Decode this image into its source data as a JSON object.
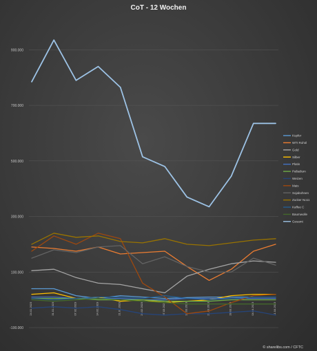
{
  "chart_data": {
    "type": "line",
    "title": "CoT - 12 Wochen",
    "credit": "© sharelibs.com / CFTC",
    "x": [
      "24.01.2023",
      "31.01.2023",
      "07.02.2023",
      "14.02.2023",
      "21.02.2023",
      "28.02.2023",
      "07.03.2023",
      "14.03.2023",
      "21.03.2023",
      "28.03.2023",
      "04.04.2023",
      "11.04.2023"
    ],
    "ylim": [
      -100000,
      1000000
    ],
    "yticks": [
      -100000,
      100000,
      300000,
      500000,
      700000,
      900000
    ],
    "ytick_labels": [
      "-100.000",
      "100.000",
      "300.000",
      "500.000",
      "700.000",
      "900.000"
    ],
    "grid": true,
    "legend_position": "right",
    "series": [
      {
        "name": "Kupfer",
        "color": "#5b9bd5",
        "values": [
          40000,
          40000,
          15000,
          5000,
          15000,
          10000,
          5000,
          8000,
          10000,
          10000,
          10000,
          10000
        ]
      },
      {
        "name": "WTI Rohöl",
        "color": "#ed7d31",
        "values": [
          190000,
          185000,
          175000,
          190000,
          165000,
          170000,
          175000,
          120000,
          70000,
          110000,
          175000,
          200000
        ]
      },
      {
        "name": "Gold",
        "color": "#a5a5a5",
        "values": [
          105000,
          110000,
          80000,
          60000,
          55000,
          40000,
          25000,
          85000,
          110000,
          130000,
          140000,
          135000
        ]
      },
      {
        "name": "Silber",
        "color": "#ffc000",
        "values": [
          20000,
          25000,
          5000,
          10000,
          -5000,
          0,
          -10000,
          -5000,
          0,
          15000,
          20000,
          20000
        ]
      },
      {
        "name": "Platin",
        "color": "#4472c4",
        "values": [
          10000,
          10000,
          5000,
          5000,
          5000,
          0,
          0,
          5000,
          5000,
          5000,
          5000,
          5000
        ]
      },
      {
        "name": "Palladium",
        "color": "#70ad47",
        "values": [
          5000,
          5000,
          5000,
          0,
          0,
          0,
          -5000,
          -5000,
          -5000,
          0,
          0,
          0
        ]
      },
      {
        "name": "Weizen",
        "color": "#264478",
        "values": [
          -30000,
          -25000,
          -30000,
          -25000,
          -35000,
          -50000,
          -55000,
          -50000,
          -50000,
          -45000,
          -40000,
          -55000
        ]
      },
      {
        "name": "Mais",
        "color": "#9e480e",
        "values": [
          175000,
          230000,
          200000,
          240000,
          220000,
          60000,
          10000,
          -50000,
          -40000,
          -10000,
          15000,
          20000
        ]
      },
      {
        "name": "Sojabohnen",
        "color": "#636363",
        "values": [
          150000,
          180000,
          170000,
          190000,
          195000,
          130000,
          155000,
          120000,
          100000,
          100000,
          150000,
          125000
        ]
      },
      {
        "name": "Zucker No11",
        "color": "#997300",
        "values": [
          200000,
          240000,
          225000,
          230000,
          210000,
          205000,
          220000,
          200000,
          195000,
          205000,
          215000,
          220000
        ]
      },
      {
        "name": "Kaffee C",
        "color": "#255e91",
        "values": [
          5000,
          0,
          5000,
          10000,
          10000,
          5000,
          15000,
          5000,
          0,
          5000,
          10000,
          10000
        ]
      },
      {
        "name": "Baumwolle",
        "color": "#43682b",
        "values": [
          0,
          -5000,
          0,
          5000,
          0,
          -5000,
          -10000,
          -15000,
          -15000,
          -15000,
          -15000,
          -15000
        ]
      },
      {
        "name": "Gesamt",
        "color": "#9dc3e6",
        "values": [
          785000,
          935000,
          790000,
          840000,
          765000,
          515000,
          480000,
          370000,
          335000,
          445000,
          635000,
          635000
        ]
      }
    ]
  }
}
